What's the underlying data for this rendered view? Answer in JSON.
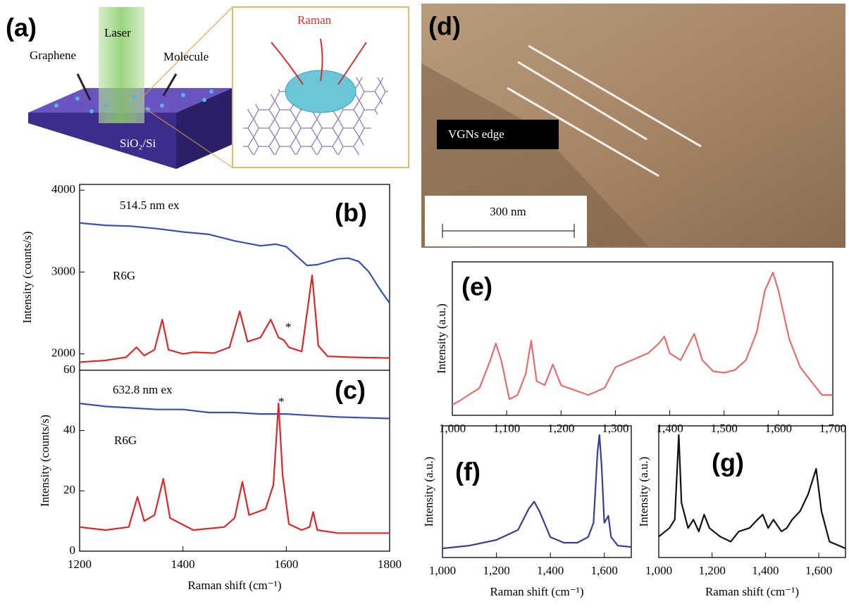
{
  "panel_a": {
    "label": "(a)",
    "laser": "Laser",
    "graphene": "Graphene",
    "molecule": "Molecule",
    "substrate": "SiO₂/Si",
    "raman": "Raman"
  },
  "panel_d": {
    "label": "(d)",
    "edge_label": "VGNs edge",
    "scale_bar": "300 nm"
  },
  "chart_data": [
    {
      "type": "line",
      "panel_label": "(b)",
      "y_label": "Intensity (counts/s)",
      "annotations": [
        "514.5 nm ex",
        "R6G",
        "*"
      ],
      "xlim": [
        1200,
        1800
      ],
      "ylim": [
        1800,
        4070
      ],
      "yticks": [
        2000,
        3000,
        4000
      ],
      "series": [
        {
          "color": "#3a4fb0",
          "x": [
            1200,
            1250,
            1300,
            1350,
            1400,
            1450,
            1500,
            1550,
            1580,
            1600,
            1640,
            1660,
            1700,
            1720,
            1740,
            1760,
            1780,
            1800
          ],
          "values": [
            3600,
            3570,
            3560,
            3530,
            3490,
            3460,
            3380,
            3320,
            3340,
            3310,
            3080,
            3090,
            3160,
            3170,
            3130,
            3000,
            2800,
            2620
          ]
        },
        {
          "color": "#d42a2a",
          "x": [
            1200,
            1250,
            1290,
            1310,
            1325,
            1345,
            1360,
            1372,
            1400,
            1420,
            1460,
            1490,
            1510,
            1525,
            1550,
            1570,
            1585,
            1595,
            1605,
            1630,
            1650,
            1662,
            1680,
            1720,
            1800
          ],
          "values": [
            1900,
            1920,
            1960,
            2080,
            1980,
            2050,
            2420,
            2050,
            2000,
            2020,
            2010,
            2080,
            2520,
            2150,
            2200,
            2420,
            2200,
            2170,
            2080,
            2030,
            2960,
            2100,
            1970,
            1960,
            1950
          ]
        }
      ]
    },
    {
      "type": "line",
      "panel_label": "(c)",
      "y_label": "Intensity (counts/s)",
      "x_label": "Raman shift (cm⁻¹)",
      "annotations": [
        "632.8 nm ex",
        "R6G",
        "*"
      ],
      "xlim": [
        1200,
        1800
      ],
      "xticks": [
        1200,
        1400,
        1600,
        1800
      ],
      "ylim": [
        0,
        60
      ],
      "yticks": [
        0,
        20,
        40,
        60
      ],
      "series": [
        {
          "color": "#3a4fb0",
          "x": [
            1200,
            1250,
            1300,
            1350,
            1400,
            1450,
            1500,
            1550,
            1600,
            1650,
            1700,
            1800
          ],
          "values": [
            49,
            48,
            47.5,
            47,
            47,
            46,
            46,
            45.5,
            45.5,
            45,
            44.5,
            44
          ]
        },
        {
          "color": "#d42a2a",
          "x": [
            1200,
            1250,
            1295,
            1312,
            1325,
            1345,
            1362,
            1375,
            1420,
            1480,
            1500,
            1515,
            1528,
            1560,
            1575,
            1585,
            1593,
            1605,
            1630,
            1645,
            1652,
            1660,
            1700,
            1800
          ],
          "values": [
            8,
            7,
            8,
            18,
            10,
            12,
            24,
            11,
            7,
            8,
            11,
            23,
            12,
            14,
            22,
            49,
            25,
            9,
            7,
            8,
            13,
            7,
            6,
            6
          ]
        }
      ]
    },
    {
      "type": "line",
      "panel_label": "(e)",
      "y_label": "Intensity (a.u.)",
      "xlim": [
        1000,
        1700
      ],
      "xticks": [
        {
          "value": 1000,
          "label": "1,000"
        },
        {
          "value": 1100,
          "label": "1,100"
        },
        {
          "value": 1200,
          "label": "1,200"
        },
        {
          "value": 1300,
          "label": "1,300"
        },
        {
          "value": 1400,
          "label": "1,400"
        },
        {
          "value": 1500,
          "label": "1,500"
        },
        {
          "value": 1600,
          "label": "1,600"
        },
        {
          "value": 1700,
          "label": "1,700"
        }
      ],
      "series": [
        {
          "color": "#e07070",
          "x": [
            1000,
            1010,
            1050,
            1070,
            1080,
            1090,
            1105,
            1120,
            1135,
            1145,
            1155,
            1170,
            1185,
            1200,
            1250,
            1280,
            1300,
            1330,
            1360,
            1380,
            1390,
            1400,
            1420,
            1445,
            1460,
            1480,
            1500,
            1520,
            1540,
            1560,
            1575,
            1590,
            1600,
            1620,
            1640,
            1660,
            1680,
            1700
          ],
          "values": [
            8,
            10,
            20,
            40,
            52,
            40,
            12,
            15,
            30,
            54,
            25,
            22,
            37,
            22,
            15,
            20,
            35,
            40,
            45,
            52,
            57,
            45,
            40,
            59,
            40,
            32,
            31,
            33,
            40,
            60,
            90,
            103,
            90,
            55,
            35,
            25,
            15,
            15
          ]
        }
      ]
    },
    {
      "type": "line",
      "panel_label": "(f)",
      "y_label": "Intensity (a.u.)",
      "x_label": "Raman shift (cm⁻¹)",
      "xlim": [
        1000,
        1700
      ],
      "xticks": [
        {
          "value": 1000,
          "label": "1,000"
        },
        {
          "value": 1200,
          "label": "1,200"
        },
        {
          "value": 1400,
          "label": "1,400"
        },
        {
          "value": 1600,
          "label": "1,600"
        }
      ],
      "series": [
        {
          "color": "#3a3f8c",
          "x": [
            1000,
            1100,
            1200,
            1280,
            1320,
            1340,
            1360,
            1400,
            1450,
            1500,
            1540,
            1560,
            1575,
            1582,
            1590,
            1600,
            1615,
            1625,
            1650,
            1700
          ],
          "values": [
            2,
            4,
            8,
            15,
            30,
            35,
            28,
            10,
            6,
            6,
            10,
            20,
            70,
            82,
            60,
            20,
            25,
            10,
            4,
            3
          ]
        }
      ]
    },
    {
      "type": "line",
      "panel_label": "(g)",
      "y_label": "Intensity (a.u.)",
      "x_label": "Raman shift (cm⁻¹)",
      "xlim": [
        1000,
        1700
      ],
      "xticks": [
        {
          "value": 1000,
          "label": "1,000"
        },
        {
          "value": 1200,
          "label": "1,200"
        },
        {
          "value": 1400,
          "label": "1,400"
        },
        {
          "value": 1600,
          "label": "1,600"
        }
      ],
      "series": [
        {
          "color": "#111111",
          "x": [
            1000,
            1040,
            1060,
            1075,
            1085,
            1110,
            1130,
            1150,
            1170,
            1190,
            1230,
            1270,
            1300,
            1340,
            1370,
            1390,
            1410,
            1430,
            1460,
            1480,
            1500,
            1530,
            1560,
            1590,
            1610,
            1640,
            1670,
            1700
          ],
          "values": [
            25,
            30,
            35,
            85,
            45,
            30,
            35,
            28,
            38,
            30,
            25,
            22,
            28,
            30,
            35,
            38,
            30,
            35,
            28,
            30,
            35,
            40,
            50,
            65,
            40,
            22,
            20,
            18
          ]
        }
      ]
    }
  ]
}
